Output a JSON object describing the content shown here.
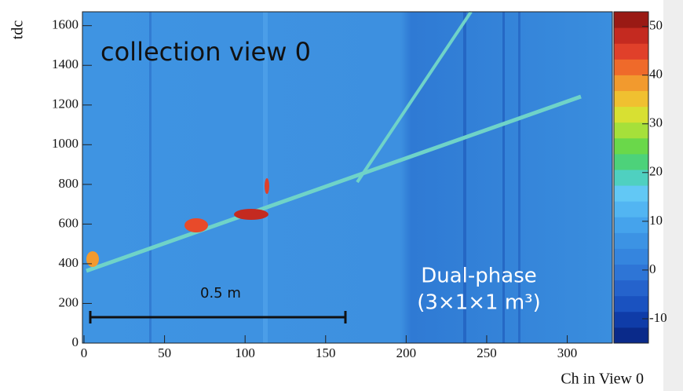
{
  "chart_data": {
    "type": "heatmap",
    "xlabel": "Ch in View 0",
    "ylabel": "tdc",
    "annotations": [
      "collection view 0",
      "0.5 m",
      "Dual-phase",
      "(3×1×1 m³)"
    ],
    "xlim": [
      0,
      328
    ],
    "xticks": [
      0,
      50,
      100,
      150,
      200,
      250,
      300
    ],
    "ylim": [
      0,
      1670
    ],
    "yticks": [
      0,
      200,
      400,
      600,
      800,
      1000,
      1200,
      1400,
      1600
    ],
    "zlim": [
      -15,
      53
    ],
    "zticks": [
      -10,
      0,
      10,
      20,
      30,
      40,
      50
    ],
    "colorscale": [
      "#0a2a8a",
      "#0f3ca8",
      "#1a52c0",
      "#2563cc",
      "#2e75d6",
      "#3585de",
      "#3c93e4",
      "#45a3ec",
      "#52b5f2",
      "#62c8f5",
      "#4fd0c0",
      "#4dd27a",
      "#6ad84a",
      "#a6e03a",
      "#d8e032",
      "#f0c030",
      "#f29a2e",
      "#ef6a2a",
      "#e0402a",
      "#c42a20",
      "#9a1a14"
    ]
  }
}
